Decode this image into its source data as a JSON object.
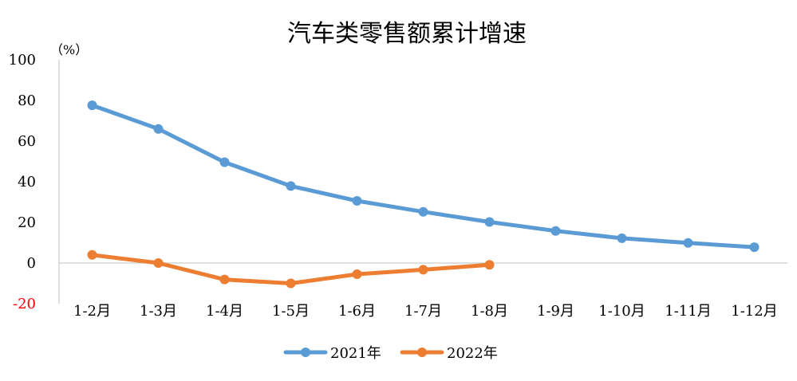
{
  "chart_data": {
    "type": "line",
    "title": "汽车类零售额累计增速",
    "unit_label": "（%）",
    "categories": [
      "1-2月",
      "1-3月",
      "1-4月",
      "1-5月",
      "1-6月",
      "1-7月",
      "1-8月",
      "1-9月",
      "1-10月",
      "1-11月",
      "1-12月"
    ],
    "ylim": [
      -20,
      100
    ],
    "yticks": [
      "100",
      "80",
      "60",
      "40",
      "20",
      "0",
      "-20"
    ],
    "grid": false,
    "legend": "bottom",
    "series": [
      {
        "name": "2021年",
        "color": "#5B9BD5",
        "values": [
          77.6,
          66.0,
          49.6,
          37.9,
          30.6,
          25.2,
          20.2,
          15.8,
          12.2,
          9.9,
          7.8
        ]
      },
      {
        "name": "2022年",
        "color": "#ED7D31",
        "values": [
          4.0,
          0.0,
          -8.1,
          -10.0,
          -5.5,
          -3.3,
          -0.9,
          null,
          null,
          null,
          null
        ]
      }
    ]
  }
}
